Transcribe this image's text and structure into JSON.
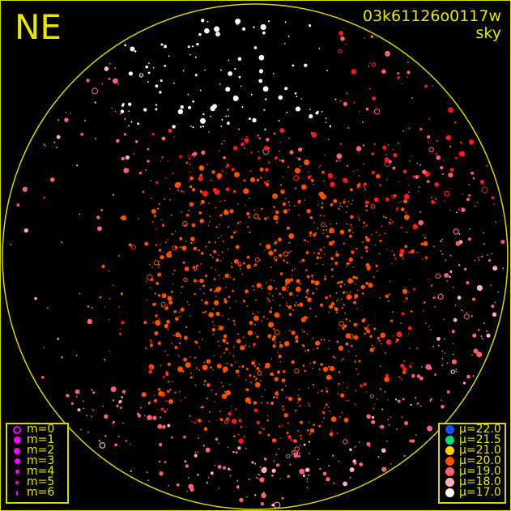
{
  "header": {
    "direction": "NE",
    "frame_id": "03k61126o0117w",
    "sky_label": "sky"
  },
  "chart_data": {
    "type": "scatter",
    "description_fields": "star positions on all-sky fisheye; symbol size = magnitude, color = sky brightness",
    "magnitude_legend": [
      {
        "label": "m=0",
        "style": "ring"
      },
      {
        "label": "m=1",
        "style": "filled"
      },
      {
        "label": "m=2",
        "style": "filled"
      },
      {
        "label": "m=3",
        "style": "filled"
      },
      {
        "label": "m=4",
        "style": "filled"
      },
      {
        "label": "m=5",
        "style": "filled"
      },
      {
        "label": "m=6",
        "style": "filled"
      }
    ],
    "magnitude_color": "#ff00ff",
    "brightness_legend": [
      {
        "label": "μ=22.0",
        "color": "#1050ff"
      },
      {
        "label": "μ=21.5",
        "color": "#00e070"
      },
      {
        "label": "μ=21.0",
        "color": "#ffd000"
      },
      {
        "label": "μ=20.0",
        "color": "#ff5000"
      },
      {
        "label": "μ=19.0",
        "color": "#ff6070"
      },
      {
        "label": "μ=18.0",
        "color": "#ffb0c0"
      },
      {
        "label": "μ=17.0",
        "color": "#ffffff"
      }
    ],
    "horizon_color": "#d8d800",
    "extra_color_red": "#ff1818"
  }
}
